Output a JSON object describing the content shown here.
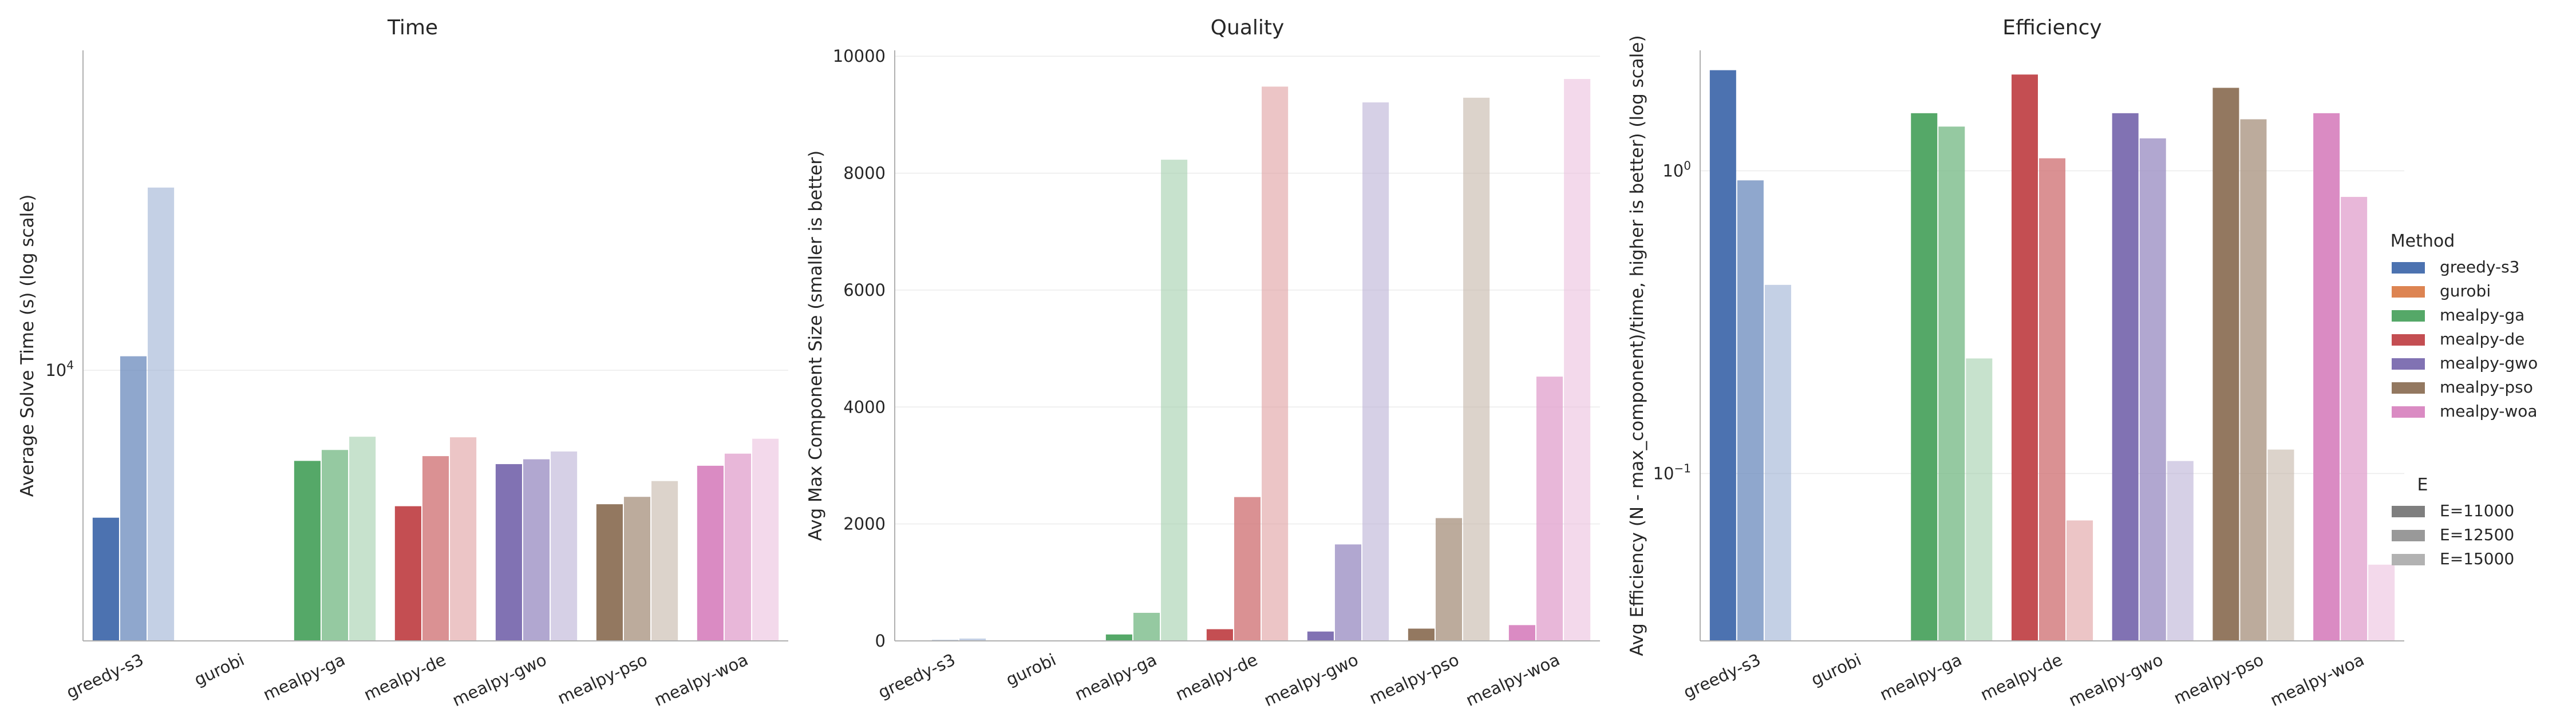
{
  "chart_data": [
    {
      "type": "bar",
      "title": "Time",
      "xlabel": "",
      "ylabel": "Average Solve Time (s) (log scale)",
      "yscale": "log",
      "ylim": [
        2700,
        47000
      ],
      "yticks": [
        {
          "value": 10000,
          "base": "10",
          "exp": "4"
        }
      ],
      "grid": true,
      "categories": [
        "greedy-s3",
        "gurobi",
        "mealpy-ga",
        "mealpy-de",
        "mealpy-gwo",
        "mealpy-pso",
        "mealpy-woa"
      ],
      "series": [
        {
          "name": "E=11000",
          "values": [
            4900,
            null,
            6450,
            5180,
            6350,
            5230,
            6300
          ]
        },
        {
          "name": "E=12500",
          "values": [
            10700,
            null,
            6800,
            6600,
            6500,
            5420,
            6680
          ]
        },
        {
          "name": "E=15000",
          "values": [
            24200,
            null,
            7250,
            7230,
            6750,
            5850,
            7180
          ]
        }
      ]
    },
    {
      "type": "bar",
      "title": "Quality",
      "xlabel": "",
      "ylabel": "Avg Max Component Size (smaller is better)",
      "yscale": "linear",
      "ylim": [
        0,
        10100
      ],
      "yticks": [
        {
          "value": 0,
          "label": "0"
        },
        {
          "value": 2000,
          "label": "2000"
        },
        {
          "value": 4000,
          "label": "4000"
        },
        {
          "value": 6000,
          "label": "6000"
        },
        {
          "value": 8000,
          "label": "8000"
        },
        {
          "value": 10000,
          "label": "10000"
        }
      ],
      "grid": true,
      "categories": [
        "greedy-s3",
        "gurobi",
        "mealpy-ga",
        "mealpy-de",
        "mealpy-gwo",
        "mealpy-pso",
        "mealpy-woa"
      ],
      "series": [
        {
          "name": "E=11000",
          "values": [
            5,
            0,
            110,
            200,
            160,
            210,
            270
          ]
        },
        {
          "name": "E=12500",
          "values": [
            15,
            0,
            480,
            2460,
            1650,
            2100,
            4520
          ]
        },
        {
          "name": "E=15000",
          "values": [
            40,
            0,
            8230,
            9480,
            9210,
            9290,
            9610
          ]
        }
      ]
    },
    {
      "type": "bar",
      "title": "Efficiency",
      "xlabel": "",
      "ylabel": "Avg Efficiency (N - max_component)/time, higher is better) (log scale)",
      "yscale": "log",
      "ylim": [
        0.028,
        2.5
      ],
      "yticks": [
        {
          "value": 1,
          "base": "10",
          "exp": "0"
        },
        {
          "value": 0.1,
          "base": "10",
          "exp": "−1"
        }
      ],
      "grid": true,
      "categories": [
        "greedy-s3",
        "gurobi",
        "mealpy-ga",
        "mealpy-de",
        "mealpy-gwo",
        "mealpy-pso",
        "mealpy-woa"
      ],
      "series": [
        {
          "name": "E=11000",
          "values": [
            2.15,
            null,
            1.55,
            2.08,
            1.55,
            1.88,
            1.55
          ]
        },
        {
          "name": "E=12500",
          "values": [
            0.93,
            null,
            1.4,
            1.1,
            1.28,
            1.48,
            0.82
          ]
        },
        {
          "name": "E=15000",
          "values": [
            0.42,
            null,
            0.24,
            0.07,
            0.11,
            0.12,
            0.05
          ]
        }
      ]
    }
  ],
  "legend": {
    "placement": "right",
    "method_title": "Method",
    "methods": [
      {
        "name": "greedy-s3",
        "color": "#4c72b0"
      },
      {
        "name": "gurobi",
        "color": "#dd8452"
      },
      {
        "name": "mealpy-ga",
        "color": "#55a868"
      },
      {
        "name": "mealpy-de",
        "color": "#c44e52"
      },
      {
        "name": "mealpy-gwo",
        "color": "#8172b3"
      },
      {
        "name": "mealpy-pso",
        "color": "#937860"
      },
      {
        "name": "mealpy-woa",
        "color": "#da8bc3"
      }
    ],
    "e_title": "E",
    "e_levels": [
      {
        "name": "E=11000",
        "color": "#7f7f7f"
      },
      {
        "name": "E=12500",
        "color": "#999999"
      },
      {
        "name": "E=15000",
        "color": "#b2b2b2"
      }
    ]
  }
}
